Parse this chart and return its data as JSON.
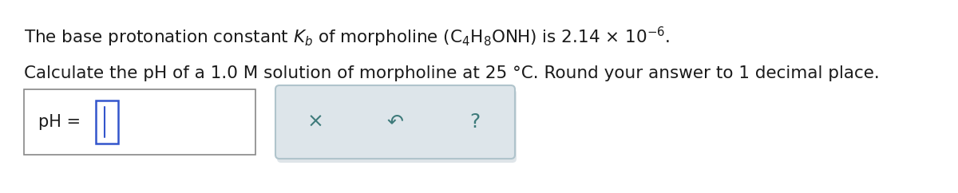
{
  "line1": "The base protonation constant $K_b$ of morpholine (C$_4$H$_8$ONH) is 2.14 × 10$^{-6}$.",
  "line2": "Calculate the pH of a 1.0 M solution of morpholine at 25 °C. Round your answer to 1 decimal place.",
  "ph_label": "pH = ",
  "symbol_x": "×",
  "symbol_undo": "↶",
  "symbol_q": "?",
  "bg_color": "#ffffff",
  "text_color": "#1a1a1a",
  "symbol_color": "#3d7a7a",
  "box1_facecolor": "#ffffff",
  "box1_edgecolor": "#888888",
  "box2_facecolor": "#dde5ea",
  "box2_edgecolor": "#b0c4cc",
  "cursor_color": "#3355cc",
  "font_size_main": 15.5,
  "font_size_box": 15,
  "font_size_symbols": 18,
  "fig_width": 12.0,
  "fig_height": 2.42
}
